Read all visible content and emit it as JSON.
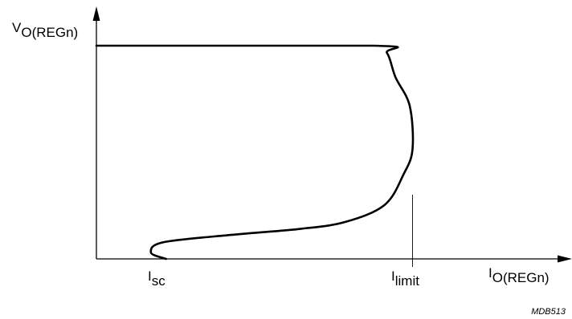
{
  "chart_data": {
    "type": "line",
    "title": "",
    "ylabel": {
      "main": "V",
      "sub": "O(REGn)"
    },
    "xlabel": {
      "main": "I",
      "sub": "O(REGn)"
    },
    "annotations": [
      {
        "id": "isc",
        "main": "I",
        "sub": "sc"
      },
      {
        "id": "ilimit",
        "main": "I",
        "sub": "limit"
      }
    ],
    "figure_id": "MDB513",
    "xlim": [
      0,
      1
    ],
    "ylim": [
      0,
      1
    ],
    "grid": false,
    "series": [
      {
        "points": [
          [
            0.0,
            0.878
          ],
          [
            0.584,
            0.878
          ],
          [
            0.613,
            0.848
          ],
          [
            0.631,
            0.748
          ],
          [
            0.661,
            0.63
          ],
          [
            0.667,
            0.452
          ],
          [
            0.648,
            0.348
          ],
          [
            0.608,
            0.222
          ],
          [
            0.525,
            0.152
          ],
          [
            0.432,
            0.124
          ],
          [
            0.291,
            0.1
          ],
          [
            0.142,
            0.069
          ],
          [
            0.115,
            0.026
          ],
          [
            0.147,
            0.0
          ]
        ]
      }
    ],
    "markers": [
      {
        "id": "isc",
        "x": 0.115
      },
      {
        "id": "ilimit",
        "x": 0.667
      }
    ]
  }
}
